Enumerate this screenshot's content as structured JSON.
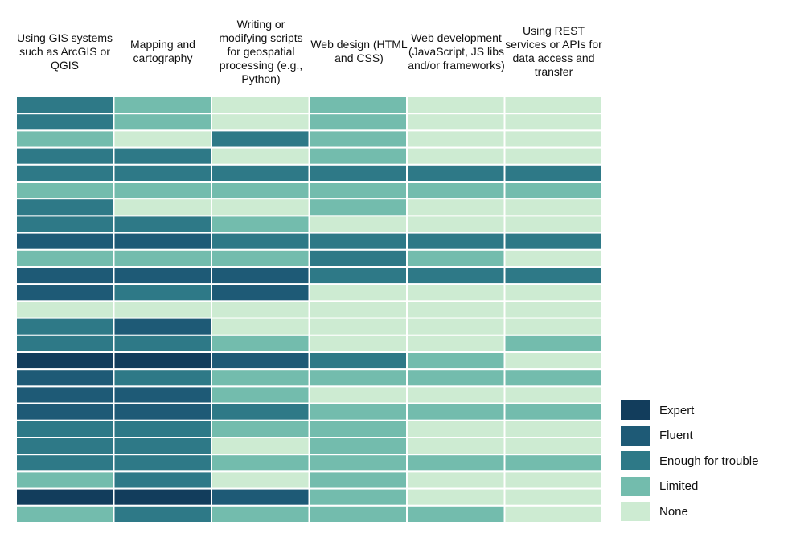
{
  "chart_data": {
    "type": "heatmap",
    "columns": [
      "Using GIS systems such as ArcGIS or QGIS",
      "Mapping and cartography",
      "Writing or modifying scripts for geospatial processing (e.g., Python)",
      "Web design (HTML and CSS)",
      "Web development (JavaScript, JS libs and/or frameworks)",
      "Using REST services or APIs for data access and transfer"
    ],
    "levels": [
      "Expert",
      "Fluent",
      "Enough for trouble",
      "Limited",
      "None"
    ],
    "colors": {
      "Expert": "#123d5c",
      "Fluent": "#1e5a76",
      "Enough for trouble": "#2e7987",
      "Limited": "#73bcad",
      "None": "#cdebd2"
    },
    "rows": [
      [
        "Enough for trouble",
        "Limited",
        "None",
        "Limited",
        "None",
        "None"
      ],
      [
        "Enough for trouble",
        "Limited",
        "None",
        "Limited",
        "None",
        "None"
      ],
      [
        "Limited",
        "None",
        "Enough for trouble",
        "Limited",
        "None",
        "None"
      ],
      [
        "Enough for trouble",
        "Enough for trouble",
        "None",
        "Limited",
        "None",
        "None"
      ],
      [
        "Enough for trouble",
        "Enough for trouble",
        "Enough for trouble",
        "Enough for trouble",
        "Enough for trouble",
        "Enough for trouble"
      ],
      [
        "Limited",
        "Limited",
        "Limited",
        "Limited",
        "Limited",
        "Limited"
      ],
      [
        "Enough for trouble",
        "None",
        "None",
        "Limited",
        "None",
        "None"
      ],
      [
        "Enough for trouble",
        "Enough for trouble",
        "Limited",
        "None",
        "None",
        "None"
      ],
      [
        "Fluent",
        "Fluent",
        "Enough for trouble",
        "Enough for trouble",
        "Enough for trouble",
        "Enough for trouble"
      ],
      [
        "Limited",
        "Limited",
        "Limited",
        "Enough for trouble",
        "Limited",
        "None"
      ],
      [
        "Fluent",
        "Fluent",
        "Fluent",
        "Enough for trouble",
        "Enough for trouble",
        "Enough for trouble"
      ],
      [
        "Fluent",
        "Enough for trouble",
        "Fluent",
        "None",
        "None",
        "None"
      ],
      [
        "None",
        "None",
        "None",
        "None",
        "None",
        "None"
      ],
      [
        "Enough for trouble",
        "Fluent",
        "None",
        "None",
        "None",
        "None"
      ],
      [
        "Enough for trouble",
        "Enough for trouble",
        "Limited",
        "None",
        "None",
        "Limited"
      ],
      [
        "Expert",
        "Expert",
        "Fluent",
        "Enough for trouble",
        "Limited",
        "None"
      ],
      [
        "Fluent",
        "Enough for trouble",
        "Limited",
        "Limited",
        "Limited",
        "Limited"
      ],
      [
        "Fluent",
        "Fluent",
        "Limited",
        "None",
        "None",
        "None"
      ],
      [
        "Fluent",
        "Fluent",
        "Enough for trouble",
        "Limited",
        "Limited",
        "Limited"
      ],
      [
        "Enough for trouble",
        "Enough for trouble",
        "Limited",
        "Limited",
        "None",
        "None"
      ],
      [
        "Enough for trouble",
        "Enough for trouble",
        "None",
        "Limited",
        "None",
        "None"
      ],
      [
        "Enough for trouble",
        "Enough for trouble",
        "Limited",
        "Limited",
        "Limited",
        "Limited"
      ],
      [
        "Limited",
        "Enough for trouble",
        "None",
        "Limited",
        "None",
        "None"
      ],
      [
        "Expert",
        "Expert",
        "Fluent",
        "Limited",
        "None",
        "None"
      ],
      [
        "Limited",
        "Enough for trouble",
        "Limited",
        "Limited",
        "Limited",
        "None"
      ]
    ],
    "legend": "right-bottom"
  }
}
